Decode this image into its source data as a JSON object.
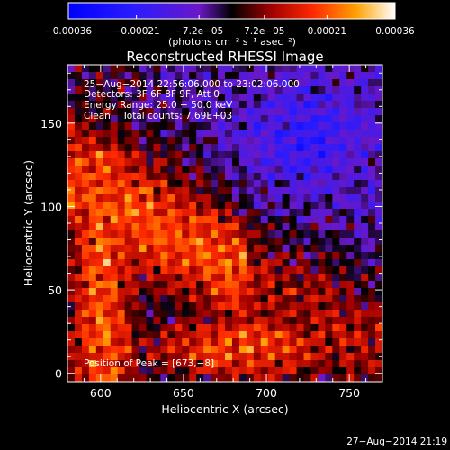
{
  "colorbar": {
    "tick_labels": [
      "−0.00036",
      "−0.00021",
      "−7.2e−05",
      "7.2e−05",
      "0.00021",
      "0.00036"
    ],
    "tick_values": [
      -0.00036,
      -0.00021,
      -7.2e-05,
      7.2e-05,
      0.00021,
      0.00036
    ],
    "range": [
      -0.00036,
      0.00036
    ],
    "unit_label": "(photons cm⁻² s⁻¹ asec⁻²)"
  },
  "plot": {
    "title": "Reconstructed RHESSI Image",
    "xlabel": "Heliocentric X (arcsec)",
    "ylabel": "Heliocentric Y (arcsec)",
    "xlim": [
      580,
      770
    ],
    "ylim": [
      -5,
      185
    ],
    "xticks": [
      "600",
      "650",
      "700",
      "750"
    ],
    "xtick_values": [
      600,
      650,
      700,
      750
    ],
    "yticks": [
      "0",
      "50",
      "100",
      "150"
    ],
    "ytick_values": [
      0,
      50,
      100,
      150
    ]
  },
  "annotations": {
    "time_range": "25−Aug−2014 22:56:06.000 to 23:02:06.000",
    "detectors": "Detectors: 3F 6F 8F 9F, Att 0",
    "energy_range": "Energy Range: 25.0 − 50.0 keV",
    "clean": "Clean    Total counts: 7.69E+03",
    "peak": "Position of Peak = [673,−8]"
  },
  "footer": {
    "timestamp": "27−Aug−2014 21:19"
  },
  "colors": {
    "background": "#000000",
    "foreground": "#ffffff"
  }
}
